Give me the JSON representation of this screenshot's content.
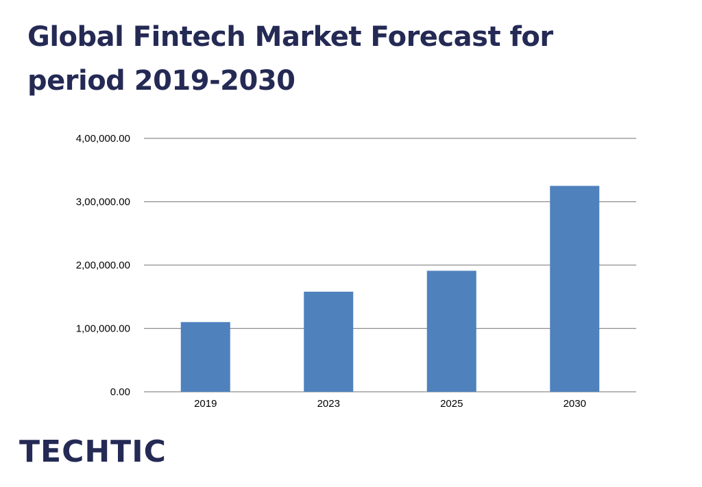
{
  "title": "Global Fintech Market Forecast for period 2019-2030",
  "brand": {
    "logo_text": "TECHTIC"
  },
  "colors": {
    "title": "#242a54",
    "bar": "#4f81bd",
    "grid": "#8c8c8c",
    "logo": "#242a54"
  },
  "chart_data": {
    "type": "bar",
    "categories": [
      "2019",
      "2023",
      "2025",
      "2030"
    ],
    "values": [
      110000,
      158000,
      191000,
      325000
    ],
    "ylim": [
      0,
      400000
    ],
    "yticks": [
      0,
      100000,
      200000,
      300000,
      400000
    ],
    "ytick_labels": [
      "0.00",
      "1,00,000.00",
      "2,00,000.00",
      "3,00,000.00",
      "4,00,000.00"
    ],
    "grid": true,
    "legend": "none"
  }
}
